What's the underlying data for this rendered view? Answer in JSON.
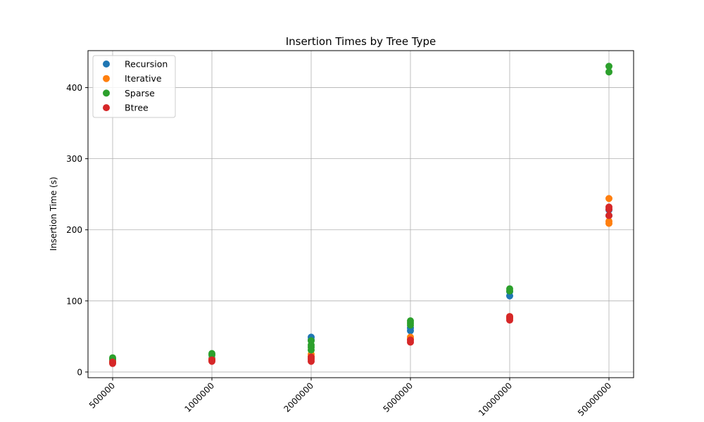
{
  "chart_data": {
    "type": "scatter",
    "title": "Insertion Times by Tree Type",
    "xlabel": "",
    "ylabel": "Insertion Time (s)",
    "x_categories": [
      "500000",
      "1000000",
      "2000000",
      "5000000",
      "10000000",
      "50000000"
    ],
    "ylim": [
      -8,
      452
    ],
    "yticks": [
      0,
      100,
      200,
      300,
      400
    ],
    "grid": true,
    "legend_position": "top-left",
    "series": [
      {
        "name": "Recursion",
        "color": "#1f77b4",
        "points": [
          {
            "x": "500000",
            "y": 14
          },
          {
            "x": "500000",
            "y": 16
          },
          {
            "x": "1000000",
            "y": 17
          },
          {
            "x": "1000000",
            "y": 19
          },
          {
            "x": "2000000",
            "y": 49
          },
          {
            "x": "2000000",
            "y": 45
          },
          {
            "x": "5000000",
            "y": 58
          },
          {
            "x": "5000000",
            "y": 62
          },
          {
            "x": "10000000",
            "y": 107
          },
          {
            "x": "10000000",
            "y": 113
          },
          {
            "x": "50000000",
            "y": 220
          },
          {
            "x": "50000000",
            "y": 228
          }
        ]
      },
      {
        "name": "Iterative",
        "color": "#ff7f0e",
        "points": [
          {
            "x": "500000",
            "y": 13
          },
          {
            "x": "500000",
            "y": 15
          },
          {
            "x": "1000000",
            "y": 16
          },
          {
            "x": "1000000",
            "y": 18
          },
          {
            "x": "2000000",
            "y": 22
          },
          {
            "x": "2000000",
            "y": 25
          },
          {
            "x": "5000000",
            "y": 46
          },
          {
            "x": "5000000",
            "y": 49
          },
          {
            "x": "10000000",
            "y": 75
          },
          {
            "x": "10000000",
            "y": 78
          },
          {
            "x": "50000000",
            "y": 244
          },
          {
            "x": "50000000",
            "y": 212
          },
          {
            "x": "50000000",
            "y": 209
          }
        ]
      },
      {
        "name": "Sparse",
        "color": "#2ca02c",
        "points": [
          {
            "x": "500000",
            "y": 18
          },
          {
            "x": "500000",
            "y": 20
          },
          {
            "x": "1000000",
            "y": 24
          },
          {
            "x": "1000000",
            "y": 26
          },
          {
            "x": "2000000",
            "y": 31
          },
          {
            "x": "2000000",
            "y": 35
          },
          {
            "x": "2000000",
            "y": 38
          },
          {
            "x": "2000000",
            "y": 44
          },
          {
            "x": "5000000",
            "y": 66
          },
          {
            "x": "5000000",
            "y": 69
          },
          {
            "x": "5000000",
            "y": 72
          },
          {
            "x": "10000000",
            "y": 114
          },
          {
            "x": "10000000",
            "y": 117
          },
          {
            "x": "50000000",
            "y": 422
          },
          {
            "x": "50000000",
            "y": 430
          }
        ]
      },
      {
        "name": "Btree",
        "color": "#d62728",
        "points": [
          {
            "x": "500000",
            "y": 12
          },
          {
            "x": "500000",
            "y": 14
          },
          {
            "x": "1000000",
            "y": 15
          },
          {
            "x": "1000000",
            "y": 17
          },
          {
            "x": "2000000",
            "y": 15
          },
          {
            "x": "2000000",
            "y": 18
          },
          {
            "x": "2000000",
            "y": 21
          },
          {
            "x": "5000000",
            "y": 42
          },
          {
            "x": "5000000",
            "y": 45
          },
          {
            "x": "10000000",
            "y": 73
          },
          {
            "x": "10000000",
            "y": 76
          },
          {
            "x": "10000000",
            "y": 78
          },
          {
            "x": "50000000",
            "y": 220
          },
          {
            "x": "50000000",
            "y": 229
          },
          {
            "x": "50000000",
            "y": 232
          }
        ]
      }
    ]
  }
}
